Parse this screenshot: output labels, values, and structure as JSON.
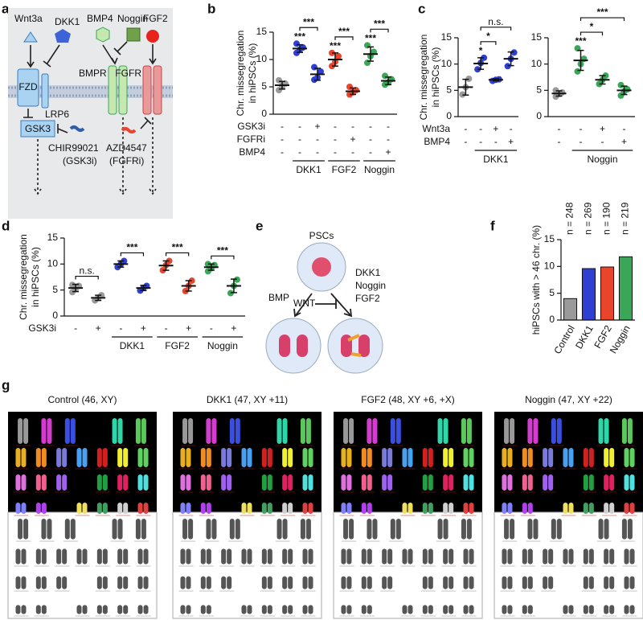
{
  "panel_labels": [
    "a",
    "b",
    "c",
    "d",
    "e",
    "f",
    "g"
  ],
  "diagram_a": {
    "labels": [
      "Wnt3a",
      "DKK1",
      "BMP4",
      "Noggin",
      "FGF2",
      "FZD",
      "LRP6",
      "BMPR",
      "FGFR",
      "GSK3",
      "CHIR99021",
      "(GSK3i)",
      "AZD4547",
      "(FGFRi)"
    ]
  },
  "diagram_e": {
    "labels": [
      "PSCs",
      "BMP",
      "WNT",
      "DKK1",
      "Noggin",
      "FGF2"
    ]
  },
  "chart_data": [
    {
      "type": "dot",
      "ylabel": [
        "Chr. missegregation",
        "in hiPSCs (%)"
      ],
      "ylim": [
        0,
        15
      ],
      "yticks": [
        0,
        5,
        10,
        15
      ],
      "series": [
        {
          "color": "#9a9a9a",
          "values": [
            4.4,
            5.0,
            5.6,
            6.2,
            5.2
          ],
          "mean": 5.3,
          "sd": 0.7
        },
        {
          "color": "#2f3fd1",
          "values": [
            11.2,
            11.8,
            12.2,
            12.9
          ],
          "mean": 12.0,
          "sd": 0.7
        },
        {
          "color": "#2f3fd1",
          "values": [
            6.3,
            6.7,
            7.8,
            8.6
          ],
          "mean": 7.3,
          "sd": 1.1
        },
        {
          "color": "#e8452c",
          "values": [
            8.8,
            9.6,
            10.6,
            11.2
          ],
          "mean": 10.0,
          "sd": 1.2
        },
        {
          "color": "#e8452c",
          "values": [
            3.6,
            4.0,
            4.4,
            5.0
          ],
          "mean": 4.2,
          "sd": 0.6
        },
        {
          "color": "#3aa657",
          "values": [
            9.4,
            10.6,
            11.4,
            12.6
          ],
          "mean": 11.0,
          "sd": 1.3
        },
        {
          "color": "#3aa657",
          "values": [
            5.4,
            5.8,
            6.4,
            7.0
          ],
          "mean": 6.1,
          "sd": 0.7
        }
      ],
      "conditions": [
        {
          "label": "GSK3i",
          "marks": [
            "-",
            "-",
            "+",
            "-",
            "-",
            "-",
            "-"
          ]
        },
        {
          "label": "FGFRi",
          "marks": [
            "-",
            "-",
            "-",
            "-",
            "+",
            "-",
            "-"
          ]
        },
        {
          "label": "BMP4",
          "marks": [
            "-",
            "-",
            "-",
            "-",
            "-",
            "-",
            "+"
          ]
        }
      ],
      "groups": [
        {
          "label": "DKK1",
          "span": [
            1,
            2
          ]
        },
        {
          "label": "FGF2",
          "span": [
            3,
            4
          ]
        },
        {
          "label": "Noggin",
          "span": [
            5,
            6
          ]
        }
      ],
      "significance": [
        {
          "label": "***",
          "from": 1,
          "to": 1
        },
        {
          "label": "***",
          "from": 3,
          "to": 3
        },
        {
          "label": "***",
          "from": 5,
          "to": 5
        },
        {
          "label": "***",
          "from": 1,
          "to": 2
        },
        {
          "label": "***",
          "from": 3,
          "to": 4
        },
        {
          "label": "***",
          "from": 5,
          "to": 6
        }
      ]
    },
    {
      "type": "dot",
      "ylabel": [
        "Chr. missegregation",
        "in hiPSCs (%)"
      ],
      "ylim": [
        0,
        15
      ],
      "yticks": [
        0,
        5,
        10,
        15
      ],
      "series": [
        {
          "color": "#9a9a9a",
          "values": [
            4.2,
            5.6,
            7.2
          ],
          "mean": 5.6,
          "sd": 1.5
        },
        {
          "color": "#2f3fd1",
          "values": [
            9.0,
            10.2,
            11.2
          ],
          "mean": 10.1,
          "sd": 1.1
        },
        {
          "color": "#2f3fd1",
          "values": [
            6.8,
            7.0,
            7.1
          ],
          "mean": 7.0,
          "sd": 0.2
        },
        {
          "color": "#2f3fd1",
          "values": [
            9.6,
            11.0,
            12.2
          ],
          "mean": 11.0,
          "sd": 1.3
        }
      ],
      "conditions": [
        {
          "label": "Wnt3a",
          "marks": [
            "-",
            "-",
            "+",
            "-"
          ]
        },
        {
          "label": "BMP4",
          "marks": [
            "-",
            "-",
            "-",
            "+"
          ]
        }
      ],
      "groups": [
        {
          "label": "DKK1",
          "span": [
            1,
            3
          ]
        }
      ],
      "significance": [
        {
          "label": "*",
          "from": 1,
          "to": 1
        },
        {
          "label": "*",
          "from": 1,
          "to": 2
        },
        {
          "label": "n.s.",
          "from": 1,
          "to": 3
        }
      ]
    },
    {
      "type": "dot",
      "ylim": [
        0,
        15
      ],
      "yticks": [
        0,
        5,
        10,
        15
      ],
      "series": [
        {
          "color": "#9a9a9a",
          "values": [
            3.8,
            4.3,
            4.6,
            5.0
          ],
          "mean": 4.4,
          "sd": 0.5
        },
        {
          "color": "#3aa657",
          "values": [
            8.6,
            10.0,
            11.0,
            13.0
          ],
          "mean": 10.7,
          "sd": 1.9
        },
        {
          "color": "#3aa657",
          "values": [
            6.2,
            7.0,
            7.8
          ],
          "mean": 7.0,
          "sd": 0.8
        },
        {
          "color": "#3aa657",
          "values": [
            4.0,
            4.8,
            5.2,
            6.0
          ],
          "mean": 5.0,
          "sd": 0.8
        }
      ],
      "conditions": [
        {
          "marks": [
            "-",
            "-",
            "+",
            "-"
          ]
        },
        {
          "marks": [
            "-",
            "-",
            "-",
            "+"
          ]
        }
      ],
      "groups": [
        {
          "label": "Noggin",
          "span": [
            1,
            3
          ]
        }
      ],
      "significance": [
        {
          "label": "***",
          "from": 1,
          "to": 1
        },
        {
          "label": "*",
          "from": 1,
          "to": 2
        },
        {
          "label": "***",
          "from": 1,
          "to": 3
        }
      ]
    },
    {
      "type": "dot",
      "ylabel": [
        "Chr. missegregation",
        "in hiPSCs (%)"
      ],
      "ylim": [
        0,
        15
      ],
      "yticks": [
        0,
        5,
        10,
        15
      ],
      "series": [
        {
          "color": "#9a9a9a",
          "values": [
            4.6,
            5.2,
            5.8,
            6.0
          ],
          "mean": 5.4,
          "sd": 0.7
        },
        {
          "color": "#9a9a9a",
          "values": [
            3.0,
            3.5,
            4.0
          ],
          "mean": 3.5,
          "sd": 0.5
        },
        {
          "color": "#2f3fd1",
          "values": [
            9.4,
            10.0,
            10.6
          ],
          "mean": 10.0,
          "sd": 0.6
        },
        {
          "color": "#2f3fd1",
          "values": [
            4.9,
            5.4,
            5.8
          ],
          "mean": 5.4,
          "sd": 0.5
        },
        {
          "color": "#e8452c",
          "values": [
            8.8,
            9.8,
            10.6
          ],
          "mean": 9.7,
          "sd": 0.9
        },
        {
          "color": "#e8452c",
          "values": [
            4.8,
            5.8,
            6.8
          ],
          "mean": 5.8,
          "sd": 1.0
        },
        {
          "color": "#3aa657",
          "values": [
            8.6,
            9.2,
            9.8,
            10.0
          ],
          "mean": 9.4,
          "sd": 0.6
        },
        {
          "color": "#3aa657",
          "values": [
            4.4,
            5.8,
            7.0
          ],
          "mean": 5.8,
          "sd": 1.3
        }
      ],
      "conditions": [
        {
          "label": "GSK3i",
          "marks": [
            "-",
            "+",
            "-",
            "+",
            "-",
            "+",
            "-",
            "+"
          ]
        }
      ],
      "groups": [
        {
          "label": "DKK1",
          "span": [
            2,
            3
          ]
        },
        {
          "label": "FGF2",
          "span": [
            4,
            5
          ]
        },
        {
          "label": "Noggin",
          "span": [
            6,
            7
          ]
        }
      ],
      "significance": [
        {
          "label": "n.s.",
          "from": 0,
          "to": 1
        },
        {
          "label": "***",
          "from": 2,
          "to": 3
        },
        {
          "label": "***",
          "from": 4,
          "to": 5
        },
        {
          "label": "***",
          "from": 6,
          "to": 7
        }
      ]
    },
    {
      "type": "bar",
      "ylabel": "hiPSCs with > 46 chr. (%)",
      "ylim": [
        0,
        15
      ],
      "yticks": [
        0,
        5,
        10,
        15
      ],
      "categories": [
        "Control",
        "DKK1",
        "FGF2",
        "Noggin"
      ],
      "values": [
        4.0,
        9.6,
        9.9,
        11.8
      ],
      "colors": [
        "#9a9a9a",
        "#2f3fd1",
        "#e8452c",
        "#3aa657"
      ],
      "annotations": [
        "n = 248",
        "n = 269",
        "n = 190",
        "n = 219"
      ]
    }
  ],
  "karyotypes": [
    {
      "title": "Control (46, XY)"
    },
    {
      "title": "DKK1 (47, XY +11)"
    },
    {
      "title": "FGF2 (48, XY +6, +X)"
    },
    {
      "title": "Noggin (47, XY +22)"
    }
  ]
}
